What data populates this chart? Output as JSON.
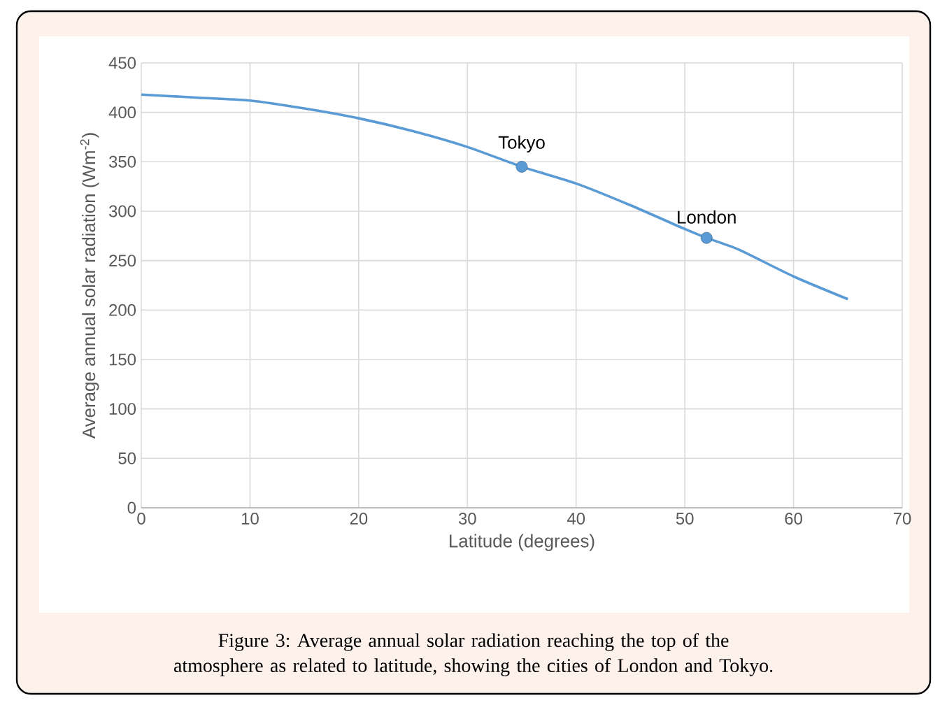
{
  "chart_data": {
    "type": "line",
    "xlabel": "Latitude (degrees)",
    "ylabel": "Average annual solar radiation (Wm$^{-2}$)",
    "xlim": [
      0,
      70
    ],
    "xticks": [
      0,
      10,
      20,
      30,
      40,
      50,
      60,
      70
    ],
    "ylim": [
      0,
      450
    ],
    "yticks": [
      0,
      50,
      100,
      150,
      200,
      250,
      300,
      350,
      400,
      450
    ],
    "grid": true,
    "series": [
      {
        "color": "#5b9bd5",
        "x": [
          0,
          5,
          10,
          15,
          20,
          25,
          30,
          35,
          40,
          45,
          50,
          52,
          55,
          60,
          65
        ],
        "values": [
          418,
          415,
          412,
          404,
          394,
          381,
          365,
          345,
          328,
          306,
          282,
          273,
          261,
          234,
          211
        ]
      },
      {
        "type": "scatter",
        "color": "#5b9bd5",
        "marker": "circle",
        "x": [
          35,
          52
        ],
        "values": [
          345,
          273
        ]
      }
    ],
    "annotations": [
      {
        "text": "Tokyo",
        "x": 35,
        "y": 345
      },
      {
        "text": "London",
        "x": 52,
        "y": 273
      },
      "Figure 3: Average annual solar radiation reaching the top of the atmosphere as related to latitude, showing the cities of London and Tokyo."
    ]
  }
}
